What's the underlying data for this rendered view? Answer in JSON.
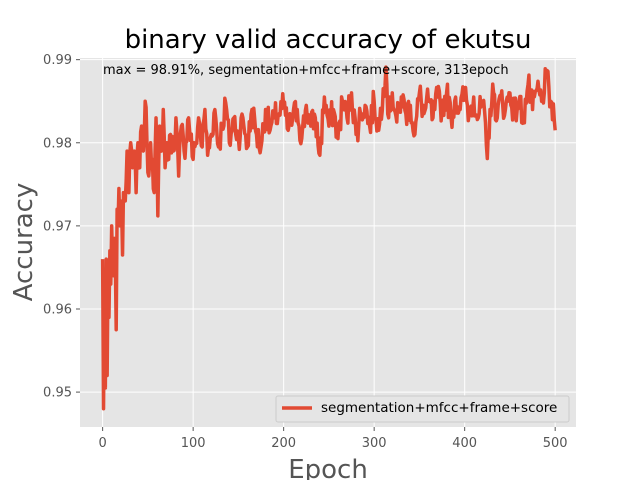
{
  "chart_data": {
    "type": "line",
    "title": "binary valid accuracy of ekutsu",
    "xlabel": "Epoch",
    "ylabel": "Accuracy",
    "xlim": [
      -25,
      523
    ],
    "ylim": [
      0.9458,
      0.9902
    ],
    "xticks": [
      0,
      100,
      200,
      300,
      400,
      500
    ],
    "yticks": [
      0.95,
      0.96,
      0.97,
      0.98,
      0.99
    ],
    "xtick_labels": [
      "0",
      "100",
      "200",
      "300",
      "400",
      "500"
    ],
    "ytick_labels": [
      "0.95",
      "0.96",
      "0.97",
      "0.98",
      "0.99"
    ],
    "grid": true,
    "legend_position": "lower-right",
    "annotation": "max  = 98.91%, segmentation+mfcc+frame+score, 313epoch",
    "series": [
      {
        "name": "segmentation+mfcc+frame+score",
        "color": "#E24A33",
        "anchors": [
          [
            0,
            0.966
          ],
          [
            1,
            0.948
          ],
          [
            2,
            0.963
          ],
          [
            3,
            0.9505
          ],
          [
            4,
            0.966
          ],
          [
            5,
            0.952
          ],
          [
            6,
            0.965
          ],
          [
            7,
            0.959
          ],
          [
            8,
            0.967
          ],
          [
            9,
            0.963
          ],
          [
            10,
            0.97
          ],
          [
            11,
            0.965
          ],
          [
            12,
            0.964
          ],
          [
            13,
            0.9685
          ],
          [
            14,
            0.966
          ],
          [
            15,
            0.9575
          ],
          [
            16,
            0.972
          ],
          [
            17,
            0.97
          ],
          [
            18,
            0.9745
          ],
          [
            19,
            0.97
          ],
          [
            20,
            0.973
          ],
          [
            21,
            0.972
          ],
          [
            22,
            0.9665
          ],
          [
            23,
            0.974
          ],
          [
            25,
            0.973
          ],
          [
            27,
            0.979
          ],
          [
            29,
            0.974
          ],
          [
            31,
            0.98
          ],
          [
            33,
            0.977
          ],
          [
            35,
            0.979
          ],
          [
            37,
            0.974
          ],
          [
            39,
            0.98
          ],
          [
            41,
            0.977
          ],
          [
            43,
            0.982
          ],
          [
            45,
            0.979
          ],
          [
            47,
            0.985
          ],
          [
            49,
            0.98
          ],
          [
            51,
            0.976
          ],
          [
            53,
            0.98
          ],
          [
            55,
            0.978
          ],
          [
            57,
            0.974
          ],
          [
            59,
            0.983
          ],
          [
            61,
            0.9712
          ],
          [
            63,
            0.982
          ],
          [
            65,
            0.979
          ],
          [
            67,
            0.984
          ],
          [
            69,
            0.977
          ],
          [
            71,
            0.98
          ],
          [
            73,
            0.978
          ],
          [
            75,
            0.981
          ],
          [
            78,
            0.979
          ],
          [
            81,
            0.983
          ],
          [
            84,
            0.976
          ],
          [
            87,
            0.982
          ],
          [
            90,
            0.979
          ],
          [
            95,
            0.983
          ],
          [
            100,
            0.978
          ],
          [
            103,
            0.98
          ],
          [
            106,
            0.983
          ],
          [
            110,
            0.9795
          ],
          [
            113,
            0.984
          ],
          [
            116,
            0.9785
          ],
          [
            120,
            0.981
          ],
          [
            124,
            0.984
          ],
          [
            128,
            0.9795
          ],
          [
            132,
            0.982
          ],
          [
            136,
            0.9848
          ],
          [
            140,
            0.98
          ],
          [
            145,
            0.983
          ],
          [
            150,
            0.9805
          ],
          [
            155,
            0.983
          ],
          [
            160,
            0.9795
          ],
          [
            165,
            0.984
          ],
          [
            170,
            0.981
          ],
          [
            175,
            0.9795
          ],
          [
            180,
            0.984
          ],
          [
            185,
            0.9815
          ],
          [
            190,
            0.983
          ],
          [
            195,
            0.9835
          ],
          [
            200,
            0.9845
          ],
          [
            205,
            0.9815
          ],
          [
            210,
            0.983
          ],
          [
            215,
            0.984
          ],
          [
            220,
            0.9805
          ],
          [
            225,
            0.9845
          ],
          [
            230,
            0.982
          ],
          [
            235,
            0.983
          ],
          [
            240,
            0.9785
          ],
          [
            245,
            0.9855
          ],
          [
            250,
            0.982
          ],
          [
            255,
            0.984
          ],
          [
            260,
            0.9805
          ],
          [
            265,
            0.985
          ],
          [
            270,
            0.983
          ],
          [
            275,
            0.986
          ],
          [
            280,
            0.981
          ],
          [
            285,
            0.9835
          ],
          [
            290,
            0.9845
          ],
          [
            295,
            0.982
          ],
          [
            300,
            0.985
          ],
          [
            305,
            0.9815
          ],
          [
            310,
            0.9865
          ],
          [
            313,
            0.9891
          ],
          [
            316,
            0.983
          ],
          [
            320,
            0.986
          ],
          [
            325,
            0.9825
          ],
          [
            330,
            0.9855
          ],
          [
            335,
            0.9835
          ],
          [
            340,
            0.9845
          ],
          [
            345,
            0.981
          ],
          [
            350,
            0.986
          ],
          [
            355,
            0.9835
          ],
          [
            360,
            0.985
          ],
          [
            365,
            0.983
          ],
          [
            370,
            0.9855
          ],
          [
            375,
            0.984
          ],
          [
            380,
            0.986
          ],
          [
            385,
            0.983
          ],
          [
            390,
            0.9855
          ],
          [
            395,
            0.984
          ],
          [
            400,
            0.986
          ],
          [
            405,
            0.9835
          ],
          [
            410,
            0.9855
          ],
          [
            415,
            0.983
          ],
          [
            420,
            0.985
          ],
          [
            425,
            0.9781
          ],
          [
            428,
            0.984
          ],
          [
            432,
            0.986
          ],
          [
            436,
            0.983
          ],
          [
            440,
            0.9855
          ],
          [
            445,
            0.984
          ],
          [
            450,
            0.986
          ],
          [
            455,
            0.9835
          ],
          [
            460,
            0.985
          ],
          [
            465,
            0.983
          ],
          [
            470,
            0.987
          ],
          [
            475,
            0.984
          ],
          [
            480,
            0.9865
          ],
          [
            485,
            0.985
          ],
          [
            490,
            0.988
          ],
          [
            495,
            0.985
          ],
          [
            500,
            0.9815
          ]
        ]
      }
    ]
  }
}
